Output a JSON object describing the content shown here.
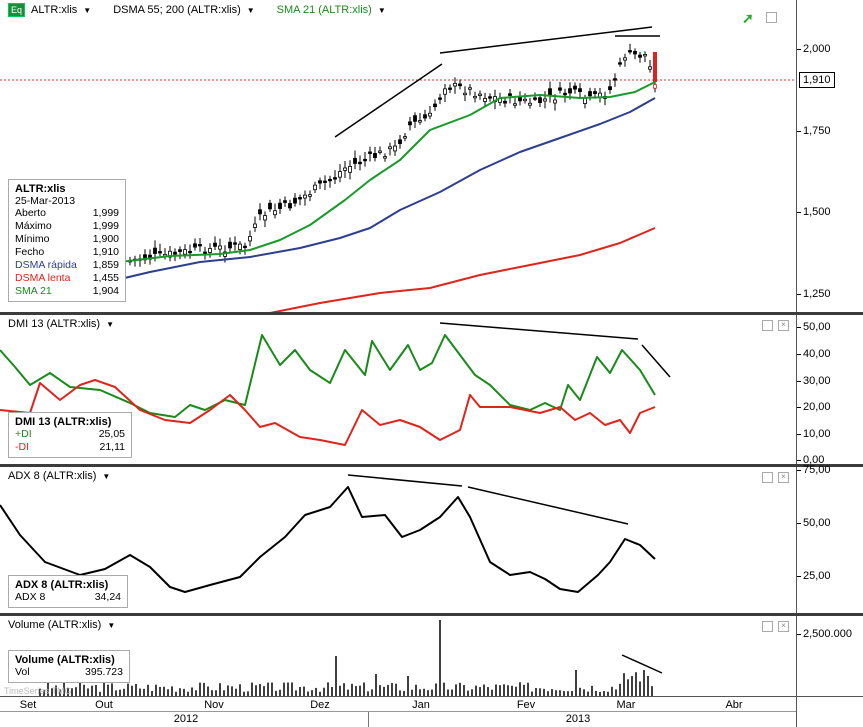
{
  "main": {
    "symbol": "ALTR:xlis",
    "indicator1": "DSMA 55; 200 (ALTR:xlis)",
    "indicator2": "SMA 21 (ALTR:xlis)",
    "badge": "Eq",
    "y_ticks": [
      "2,000",
      "1,750",
      "1,500",
      "1,250"
    ],
    "last_price": "1,910",
    "legend": {
      "title": "ALTR:xlis",
      "date": "25-Mar-2013",
      "rows": [
        {
          "label": "Aberto",
          "value": "1,999"
        },
        {
          "label": "Máximo",
          "value": "1,999"
        },
        {
          "label": "Mínimo",
          "value": "1,900"
        },
        {
          "label": "Fecho",
          "value": "1,910"
        },
        {
          "label": "DSMA rápida",
          "value": "1,859"
        },
        {
          "label": "DSMA lenta",
          "value": "1,455"
        },
        {
          "label": "SMA 21",
          "value": "1,904"
        }
      ]
    }
  },
  "dmi": {
    "title": "DMI 13 (ALTR:xlis)",
    "y_ticks": [
      "50,00",
      "40,00",
      "30,00",
      "20,00",
      "10,00",
      "0,00"
    ],
    "legend": {
      "title": "DMI 13 (ALTR:xlis)",
      "rows": [
        {
          "label": "+DI",
          "value": "25,05"
        },
        {
          "label": "-DI",
          "value": "21,11"
        }
      ]
    }
  },
  "adx": {
    "title": "ADX 8 (ALTR:xlis)",
    "y_ticks": [
      "75,00",
      "50,00",
      "25,00"
    ],
    "legend": {
      "title": "ADX 8 (ALTR:xlis)",
      "rows": [
        {
          "label": "ADX 8",
          "value": "34,24"
        }
      ]
    }
  },
  "volume": {
    "title": "Volume (ALTR:xlis)",
    "y_ticks": [
      "2,500.000"
    ],
    "legend": {
      "title": "Volume (ALTR:xlis)",
      "rows": [
        {
          "label": "Vol",
          "value": "395.723"
        }
      ]
    },
    "watermark": "TimeSeries TMG"
  },
  "x_axis": {
    "months": [
      "Set",
      "Out",
      "Nov",
      "Dez",
      "Jan",
      "Fev",
      "Mar",
      "Abr"
    ],
    "years": [
      "2012",
      "2013"
    ]
  },
  "colors": {
    "sma21": "#1a9a2a",
    "dsma_fast": "#2c3f8f",
    "dsma_slow": "#e0231b",
    "plus_di": "#1a8a1a",
    "minus_di": "#e0231b",
    "accent_up": "#2fa82f"
  }
}
